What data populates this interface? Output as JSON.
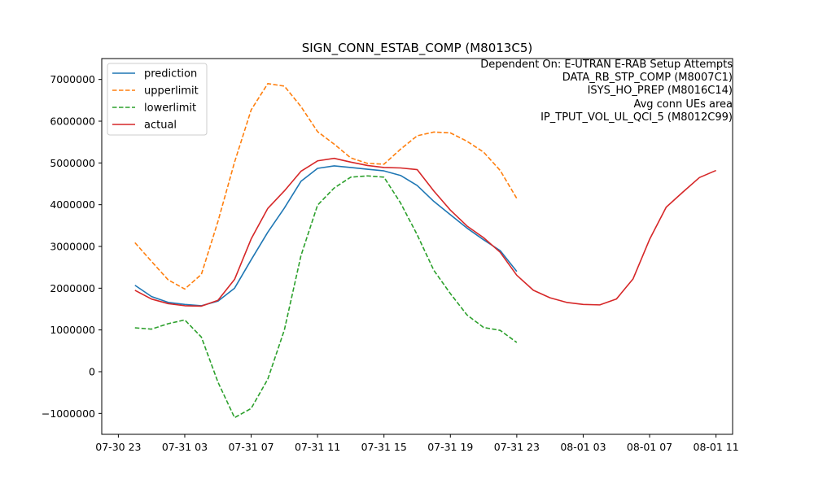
{
  "chart_data": {
    "type": "line",
    "title": "SIGN_CONN_ESTAB_COMP (M8013C5)",
    "xlabel": "",
    "ylabel": "",
    "annotation_lines": [
      "Dependent On: E-UTRAN E-RAB Setup Attempts",
      "DATA_RB_STP_COMP (M8007C1)",
      "ISYS_HO_PREP (M8016C14)",
      "Avg conn UEs area",
      "IP_TPUT_VOL_UL_QCI_5 (M8012C99)"
    ],
    "x_ticks": [
      "07-30 23",
      "07-31 03",
      "07-31 07",
      "07-31 11",
      "07-31 15",
      "07-31 19",
      "07-31 23",
      "08-01 03",
      "08-01 07",
      "08-01 11"
    ],
    "y_ticks": [
      "−1000000",
      "0",
      "1000000",
      "2000000",
      "3000000",
      "4000000",
      "5000000",
      "6000000",
      "7000000"
    ],
    "ylim": [
      -1500000,
      7500000
    ],
    "x_range_hours": [
      "2024-07-30 22:00",
      "2024-08-01 12:00"
    ],
    "grid": false,
    "legend_position": "top-left",
    "series": [
      {
        "name": "prediction",
        "color": "#1f77b4",
        "dash": "solid",
        "points": [
          [
            "07-31 00",
            2070000
          ],
          [
            "07-31 01",
            1800000
          ],
          [
            "07-31 02",
            1660000
          ],
          [
            "07-31 03",
            1610000
          ],
          [
            "07-31 04",
            1580000
          ],
          [
            "07-31 05",
            1690000
          ],
          [
            "07-31 06",
            2000000
          ],
          [
            "07-31 07",
            2680000
          ],
          [
            "07-31 08",
            3340000
          ],
          [
            "07-31 09",
            3920000
          ],
          [
            "07-31 10",
            4560000
          ],
          [
            "07-31 11",
            4870000
          ],
          [
            "07-31 12",
            4930000
          ],
          [
            "07-31 13",
            4890000
          ],
          [
            "07-31 14",
            4850000
          ],
          [
            "07-31 15",
            4810000
          ],
          [
            "07-31 16",
            4700000
          ],
          [
            "07-31 17",
            4460000
          ],
          [
            "07-31 18",
            4080000
          ],
          [
            "07-31 19",
            3760000
          ],
          [
            "07-31 20",
            3440000
          ],
          [
            "07-31 21",
            3160000
          ],
          [
            "07-31 22",
            2900000
          ],
          [
            "07-31 23",
            2400000
          ]
        ]
      },
      {
        "name": "upperlimit",
        "color": "#ff7f0e",
        "dash": "dashed",
        "points": [
          [
            "07-31 00",
            3090000
          ],
          [
            "07-31 01",
            2640000
          ],
          [
            "07-31 02",
            2200000
          ],
          [
            "07-31 03",
            1980000
          ],
          [
            "07-31 04",
            2330000
          ],
          [
            "07-31 05",
            3600000
          ],
          [
            "07-31 06",
            5020000
          ],
          [
            "07-31 07",
            6270000
          ],
          [
            "07-31 08",
            6900000
          ],
          [
            "07-31 09",
            6840000
          ],
          [
            "07-31 10",
            6350000
          ],
          [
            "07-31 11",
            5750000
          ],
          [
            "07-31 12",
            5450000
          ],
          [
            "07-31 13",
            5120000
          ],
          [
            "07-31 14",
            4990000
          ],
          [
            "07-31 15",
            4970000
          ],
          [
            "07-31 16",
            5330000
          ],
          [
            "07-31 17",
            5650000
          ],
          [
            "07-31 18",
            5740000
          ],
          [
            "07-31 19",
            5720000
          ],
          [
            "07-31 20",
            5520000
          ],
          [
            "07-31 21",
            5260000
          ],
          [
            "07-31 22",
            4820000
          ],
          [
            "07-31 23",
            4150000
          ]
        ]
      },
      {
        "name": "lowerlimit",
        "color": "#2ca02c",
        "dash": "dashed",
        "points": [
          [
            "07-31 00",
            1050000
          ],
          [
            "07-31 01",
            1020000
          ],
          [
            "07-31 02",
            1150000
          ],
          [
            "07-31 03",
            1240000
          ],
          [
            "07-31 04",
            830000
          ],
          [
            "07-31 05",
            -250000
          ],
          [
            "07-31 06",
            -1100000
          ],
          [
            "07-31 07",
            -880000
          ],
          [
            "07-31 08",
            -180000
          ],
          [
            "07-31 09",
            1000000
          ],
          [
            "07-31 10",
            2780000
          ],
          [
            "07-31 11",
            3990000
          ],
          [
            "07-31 12",
            4400000
          ],
          [
            "07-31 13",
            4660000
          ],
          [
            "07-31 14",
            4690000
          ],
          [
            "07-31 15",
            4660000
          ],
          [
            "07-31 16",
            4040000
          ],
          [
            "07-31 17",
            3280000
          ],
          [
            "07-31 18",
            2430000
          ],
          [
            "07-31 19",
            1870000
          ],
          [
            "07-31 20",
            1360000
          ],
          [
            "07-31 21",
            1060000
          ],
          [
            "07-31 22",
            990000
          ],
          [
            "07-31 23",
            700000
          ]
        ]
      },
      {
        "name": "actual",
        "color": "#d62728",
        "dash": "solid",
        "points": [
          [
            "07-31 00",
            1950000
          ],
          [
            "07-31 01",
            1740000
          ],
          [
            "07-31 02",
            1630000
          ],
          [
            "07-31 03",
            1580000
          ],
          [
            "07-31 04",
            1570000
          ],
          [
            "07-31 05",
            1710000
          ],
          [
            "07-31 06",
            2210000
          ],
          [
            "07-31 07",
            3180000
          ],
          [
            "07-31 08",
            3910000
          ],
          [
            "07-31 09",
            4330000
          ],
          [
            "07-31 10",
            4800000
          ],
          [
            "07-31 11",
            5050000
          ],
          [
            "07-31 12",
            5110000
          ],
          [
            "07-31 13",
            5020000
          ],
          [
            "07-31 14",
            4940000
          ],
          [
            "07-31 15",
            4890000
          ],
          [
            "07-31 16",
            4880000
          ],
          [
            "07-31 17",
            4840000
          ],
          [
            "07-31 18",
            4330000
          ],
          [
            "07-31 19",
            3870000
          ],
          [
            "07-31 20",
            3490000
          ],
          [
            "07-31 21",
            3210000
          ],
          [
            "07-31 22",
            2860000
          ],
          [
            "07-31 23",
            2310000
          ],
          [
            "08-01 00",
            1950000
          ],
          [
            "08-01 01",
            1770000
          ],
          [
            "08-01 02",
            1660000
          ],
          [
            "08-01 03",
            1610000
          ],
          [
            "08-01 04",
            1600000
          ],
          [
            "08-01 05",
            1740000
          ],
          [
            "08-01 06",
            2220000
          ],
          [
            "08-01 07",
            3170000
          ],
          [
            "08-01 08",
            3940000
          ],
          [
            "08-01 09",
            4300000
          ],
          [
            "08-01 10",
            4650000
          ],
          [
            "08-01 11",
            4820000
          ]
        ]
      }
    ]
  }
}
